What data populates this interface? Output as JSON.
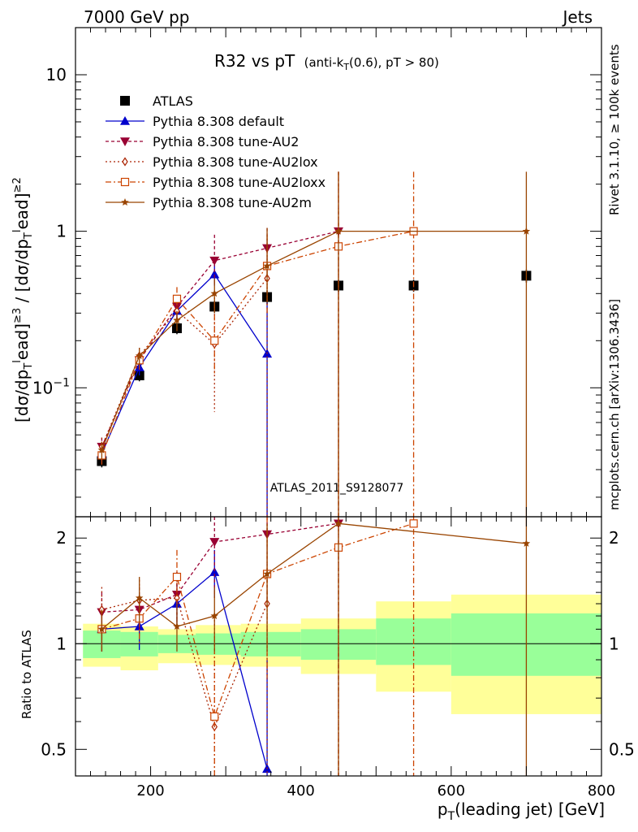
{
  "header": {
    "energy_label": "7000 GeV pp",
    "category_label": "Jets",
    "plot_title": "R32 vs pT",
    "plot_subtitle": "(anti-k",
    "plot_subtitle_sub": "T",
    "plot_subtitle_rest": "(0.6), pT > 80)",
    "analysis_label": "ATLAS_2011_S9128077",
    "side_label_top": "Rivet 3.1.10, ≥ 100k events",
    "side_label_bottom": "mcplots.cern.ch [arXiv:1306.3436]"
  },
  "chart_data": [
    {
      "type": "scatter",
      "panel": "main",
      "yscale": "log",
      "xlim": [
        100,
        800
      ],
      "ylim": [
        0.015,
        20
      ],
      "xlabel": "p_T(leading jet) [GeV]",
      "ylabel": "[dσ/dp_T^lead]^{≥3} / [dσ/dp_T^lead]^{≥2}",
      "yticks": [
        {
          "value": 0.1,
          "label": "10",
          "sup": "−1"
        },
        {
          "value": 1,
          "label": "1",
          "sup": ""
        },
        {
          "value": 10,
          "label": "10",
          "sup": ""
        }
      ],
      "legend_position": "top-left",
      "series": [
        {
          "name": "ATLAS",
          "color": "#000000",
          "marker": "square",
          "dash": "none",
          "x": [
            135,
            185,
            235,
            285,
            355,
            450,
            550,
            700
          ],
          "y": [
            0.034,
            0.12,
            0.24,
            0.33,
            0.38,
            0.45,
            0.45,
            0.52
          ],
          "err": [
            0.003,
            0.01,
            0.02,
            0.03,
            0.04,
            0.04,
            0.04,
            0.05
          ]
        },
        {
          "name": "Pythia 8.308 default",
          "color": "#0000cc",
          "marker": "triangle-up",
          "dash": "none",
          "x": [
            135,
            185,
            235,
            285,
            355
          ],
          "y": [
            0.038,
            0.135,
            0.31,
            0.53,
            0.165
          ],
          "lo": [
            0.033,
            0.12,
            0.27,
            0.45,
            0.001
          ],
          "hi": [
            0.043,
            0.15,
            0.35,
            0.61,
            0.35
          ]
        },
        {
          "name": "Pythia 8.308 tune-AU2",
          "color": "#990033",
          "marker": "triangle-down",
          "dash": "4,3",
          "x": [
            135,
            185,
            235,
            285,
            355,
            450
          ],
          "y": [
            0.042,
            0.15,
            0.33,
            0.65,
            0.78,
            1.0
          ],
          "lo": [
            0.036,
            0.13,
            0.28,
            0.45,
            0.5,
            0.001
          ],
          "hi": [
            0.048,
            0.17,
            0.38,
            0.95,
            1.05,
            2.4
          ]
        },
        {
          "name": "Pythia 8.308 tune-AU2lox",
          "color": "#aa2200",
          "marker": "diamond-open",
          "dash": "2,3",
          "x": [
            135,
            185,
            235,
            285,
            355
          ],
          "y": [
            0.042,
            0.16,
            0.31,
            0.19,
            0.5
          ],
          "lo": [
            0.036,
            0.14,
            0.26,
            0.07,
            0.001
          ],
          "hi": [
            0.048,
            0.18,
            0.36,
            0.4,
            0.9
          ]
        },
        {
          "name": "Pythia 8.308 tune-AU2loxx",
          "color": "#cc4400",
          "marker": "square-open",
          "dash": "7,3,2,3",
          "x": [
            135,
            185,
            235,
            285,
            355,
            450,
            550
          ],
          "y": [
            0.037,
            0.15,
            0.37,
            0.2,
            0.6,
            0.8,
            1.0
          ],
          "lo": [
            0.032,
            0.13,
            0.3,
            0.12,
            0.3,
            0.001,
            0.001
          ],
          "hi": [
            0.042,
            0.17,
            0.44,
            0.35,
            0.95,
            2.4,
            2.4
          ]
        },
        {
          "name": "Pythia 8.308 tune-AU2m",
          "color": "#994400",
          "marker": "star",
          "dash": "none",
          "x": [
            135,
            185,
            235,
            285,
            355,
            450,
            700
          ],
          "y": [
            0.04,
            0.16,
            0.27,
            0.4,
            0.6,
            1.0,
            1.0
          ],
          "lo": [
            0.035,
            0.14,
            0.23,
            0.3,
            0.35,
            0.001,
            0.001
          ],
          "hi": [
            0.045,
            0.18,
            0.31,
            0.5,
            1.05,
            2.4,
            2.4
          ]
        }
      ]
    },
    {
      "type": "scatter",
      "panel": "ratio",
      "yscale": "log",
      "xlim": [
        100,
        800
      ],
      "ylim": [
        0.42,
        2.3
      ],
      "xlabel": "p_T(leading jet) [GeV]",
      "ylabel": "Ratio to ATLAS",
      "xticks": [
        200,
        400,
        600,
        800
      ],
      "yticks": [
        {
          "value": 0.5,
          "label": "0.5"
        },
        {
          "value": 1,
          "label": "1"
        },
        {
          "value": 2,
          "label": "2"
        }
      ],
      "bands": [
        {
          "x0": 110,
          "x1": 160,
          "green": [
            0.91,
            1.09
          ],
          "yellow": [
            0.86,
            1.14
          ]
        },
        {
          "x0": 160,
          "x1": 210,
          "green": [
            0.92,
            1.08
          ],
          "yellow": [
            0.84,
            1.12
          ]
        },
        {
          "x0": 210,
          "x1": 260,
          "green": [
            0.94,
            1.06
          ],
          "yellow": [
            0.88,
            1.1
          ]
        },
        {
          "x0": 260,
          "x1": 320,
          "green": [
            0.93,
            1.07
          ],
          "yellow": [
            0.87,
            1.13
          ]
        },
        {
          "x0": 320,
          "x1": 400,
          "green": [
            0.92,
            1.08
          ],
          "yellow": [
            0.86,
            1.14
          ]
        },
        {
          "x0": 400,
          "x1": 500,
          "green": [
            0.9,
            1.1
          ],
          "yellow": [
            0.82,
            1.18
          ]
        },
        {
          "x0": 500,
          "x1": 600,
          "green": [
            0.87,
            1.18
          ],
          "yellow": [
            0.73,
            1.32
          ]
        },
        {
          "x0": 600,
          "x1": 800,
          "green": [
            0.81,
            1.22
          ],
          "yellow": [
            0.63,
            1.38
          ]
        }
      ],
      "series": [
        {
          "name": "Pythia 8.308 default",
          "color": "#0000cc",
          "marker": "triangle-up",
          "dash": "none",
          "x": [
            135,
            185,
            235,
            285,
            355
          ],
          "y": [
            1.1,
            1.12,
            1.3,
            1.6,
            0.44
          ],
          "lo": [
            0.95,
            0.96,
            1.12,
            1.35,
            0.001
          ],
          "hi": [
            1.25,
            1.28,
            1.48,
            1.85,
            0.9
          ]
        },
        {
          "name": "Pythia 8.308 tune-AU2",
          "color": "#990033",
          "marker": "triangle-down",
          "dash": "4,3",
          "x": [
            135,
            185,
            235,
            285,
            355,
            450
          ],
          "y": [
            1.23,
            1.25,
            1.38,
            1.95,
            2.05,
            2.2
          ],
          "lo": [
            1.05,
            1.05,
            1.15,
            1.35,
            1.3,
            0.001
          ],
          "hi": [
            1.4,
            1.45,
            1.6,
            2.5,
            2.4,
            2.4
          ]
        },
        {
          "name": "Pythia 8.308 tune-AU2lox",
          "color": "#aa2200",
          "marker": "diamond-open",
          "dash": "2,3",
          "x": [
            135,
            185,
            235,
            285,
            355
          ],
          "y": [
            1.25,
            1.33,
            1.35,
            0.58,
            1.3
          ],
          "lo": [
            1.05,
            1.12,
            1.1,
            0.22,
            0.001
          ],
          "hi": [
            1.45,
            1.52,
            1.6,
            1.2,
            2.2
          ]
        },
        {
          "name": "Pythia 8.308 tune-AU2loxx",
          "color": "#cc4400",
          "marker": "square-open",
          "dash": "7,3,2,3",
          "x": [
            135,
            185,
            235,
            285,
            355,
            450,
            550
          ],
          "y": [
            1.1,
            1.18,
            1.55,
            0.62,
            1.58,
            1.88,
            2.2
          ],
          "lo": [
            0.95,
            1.0,
            1.3,
            0.38,
            0.8,
            0.001,
            0.001
          ],
          "hi": [
            1.25,
            1.36,
            1.85,
            1.05,
            2.4,
            2.4,
            2.4
          ]
        },
        {
          "name": "Pythia 8.308 tune-AU2m",
          "color": "#994400",
          "marker": "star",
          "dash": "none",
          "x": [
            135,
            185,
            235,
            285,
            355,
            450,
            700
          ],
          "y": [
            1.1,
            1.35,
            1.12,
            1.2,
            1.58,
            2.2,
            1.93
          ],
          "lo": [
            0.95,
            1.15,
            0.95,
            0.95,
            0.95,
            0.001,
            0.001
          ],
          "hi": [
            1.25,
            1.55,
            1.3,
            1.45,
            2.2,
            2.4,
            2.4
          ]
        }
      ]
    }
  ]
}
